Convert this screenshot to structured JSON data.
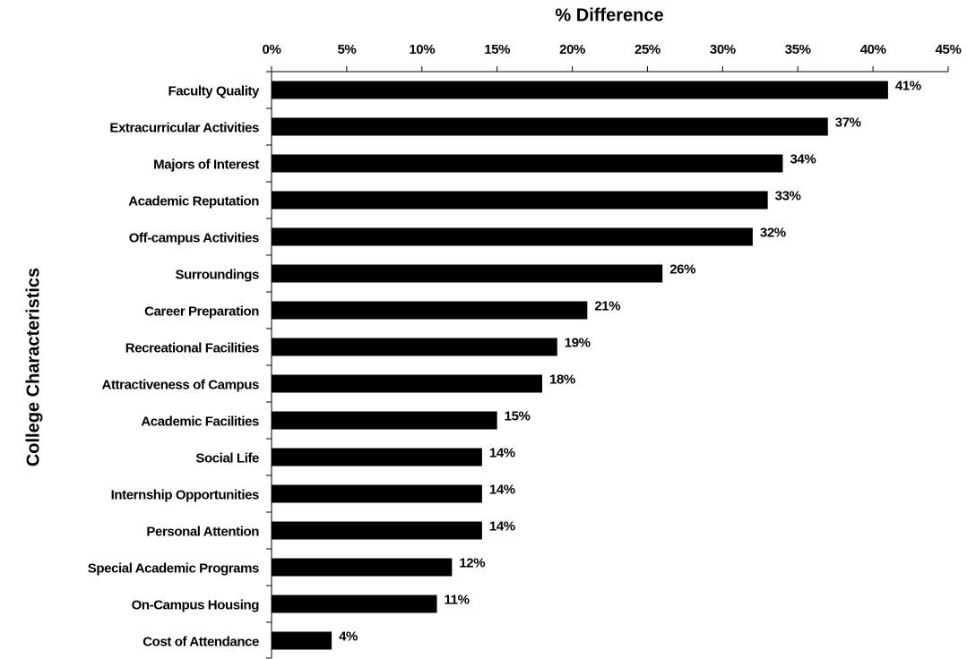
{
  "chart_data": {
    "type": "bar",
    "orientation": "horizontal",
    "value_axis_position": "top",
    "xlabel": "% Difference",
    "ylabel": "College Characteristics",
    "categories": [
      "Faculty Quality",
      "Extracurricular Activities",
      "Majors of Interest",
      "Academic Reputation",
      "Off-campus Activities",
      "Surroundings",
      "Career Preparation",
      "Recreational Facilities",
      "Attractiveness of Campus",
      "Academic Facilities",
      "Social Life",
      "Internship Opportunities",
      "Personal Attention",
      "Special Academic Programs",
      "On-Campus Housing",
      "Cost of Attendance"
    ],
    "values": [
      41,
      37,
      34,
      33,
      32,
      26,
      21,
      19,
      18,
      15,
      14,
      14,
      14,
      12,
      11,
      4
    ],
    "value_labels": [
      "41%",
      "37%",
      "34%",
      "33%",
      "32%",
      "26%",
      "21%",
      "19%",
      "18%",
      "15%",
      "14%",
      "14%",
      "14%",
      "12%",
      "11%",
      "4%"
    ],
    "color": "#000000",
    "xlim": [
      0,
      45
    ],
    "xticks": [
      {
        "value": 0,
        "label": "0%"
      },
      {
        "value": 5,
        "label": "5%"
      },
      {
        "value": 10,
        "label": "10%"
      },
      {
        "value": 15,
        "label": "15%"
      },
      {
        "value": 20,
        "label": "20%"
      },
      {
        "value": 25,
        "label": "25%"
      },
      {
        "value": 30,
        "label": "30%"
      },
      {
        "value": 35,
        "label": "35%"
      },
      {
        "value": 40,
        "label": "40%"
      },
      {
        "value": 45,
        "label": "45%"
      }
    ],
    "grid": false
  }
}
